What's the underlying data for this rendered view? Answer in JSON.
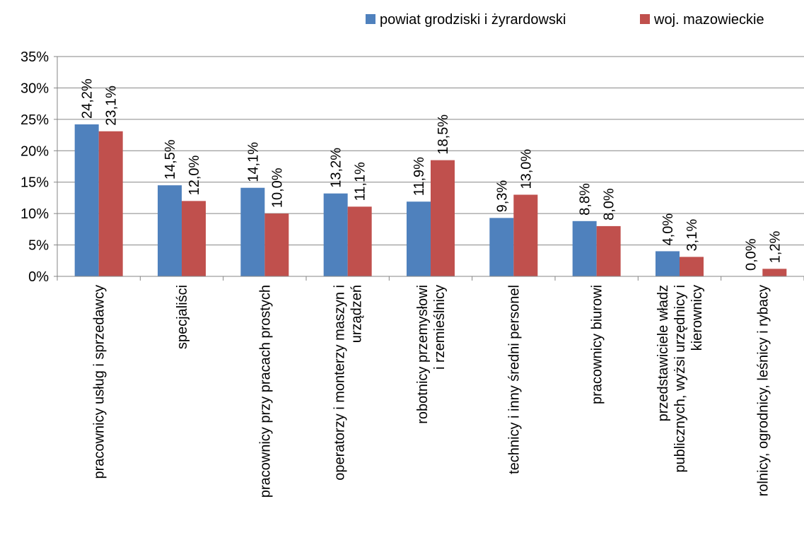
{
  "chart_data": {
    "type": "bar",
    "categories": [
      [
        "pracownicy usług i sprzedawcy"
      ],
      [
        "specjaliści"
      ],
      [
        "pracownicy przy pracach prostych"
      ],
      [
        "operatorzy i monterzy maszyn i",
        "urządzeń"
      ],
      [
        "robotnicy przemysłowi",
        "i rzemieślnicy"
      ],
      [
        "technicy i inny średni personel"
      ],
      [
        "pracownicy biurowi"
      ],
      [
        "przedstawiciele władz",
        "publicznych, wyżsi urzędnicy i",
        "kierownicy"
      ],
      [
        "rolnicy, ogrodnicy, leśnicy i rybacy"
      ]
    ],
    "series": [
      {
        "name": "powiat grodziski i żyrardowski",
        "color": "#4F81BD",
        "values": [
          24.2,
          14.5,
          14.1,
          13.2,
          11.9,
          9.3,
          8.8,
          4.0,
          0.0
        ],
        "labels": [
          "24,2%",
          "14,5%",
          "14,1%",
          "13,2%",
          "11,9%",
          "9,3%",
          "8,8%",
          "4,0%",
          "0,0%"
        ]
      },
      {
        "name": "woj. mazowieckie",
        "color": "#C0504D",
        "values": [
          23.1,
          12.0,
          10.0,
          11.1,
          18.5,
          13.0,
          8.0,
          3.1,
          1.2
        ],
        "labels": [
          "23,1%",
          "12,0%",
          "10,0%",
          "11,1%",
          "18,5%",
          "13,0%",
          "8,0%",
          "3,1%",
          "1,2%"
        ]
      }
    ],
    "yticks": [
      0,
      5,
      10,
      15,
      20,
      25,
      30,
      35
    ],
    "ytick_labels": [
      "0%",
      "5%",
      "10%",
      "15%",
      "20%",
      "25%",
      "30%",
      "35%"
    ],
    "ylim": [
      0,
      35
    ],
    "grid": true,
    "legend_position": "top-right"
  }
}
